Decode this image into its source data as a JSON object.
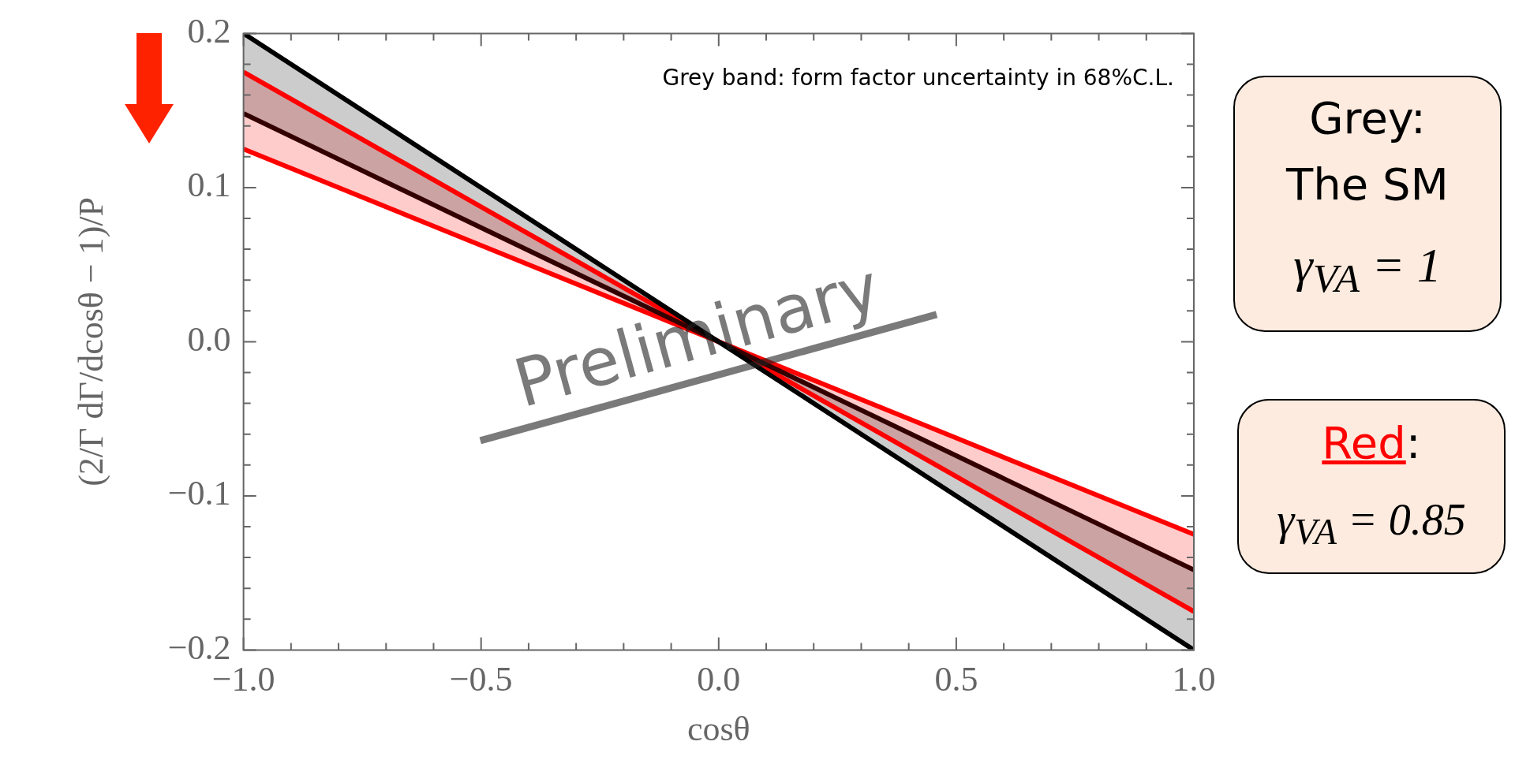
{
  "chart_data": {
    "type": "line",
    "xlabel": "cosθ",
    "ylabel": "(2/Γ dΓ/dcosθ − 1)/P",
    "xlim": [
      -1,
      1
    ],
    "ylim": [
      -0.2,
      0.2
    ],
    "xticks": [
      {
        "value": -1,
        "label": "−1.0"
      },
      {
        "value": -0.9,
        "label": null
      },
      {
        "value": -0.8,
        "label": null
      },
      {
        "value": -0.7,
        "label": null
      },
      {
        "value": -0.6,
        "label": null
      },
      {
        "value": -0.5,
        "label": "−0.5"
      },
      {
        "value": -0.4,
        "label": null
      },
      {
        "value": -0.3,
        "label": null
      },
      {
        "value": -0.2,
        "label": null
      },
      {
        "value": -0.1,
        "label": null
      },
      {
        "value": 0,
        "label": "0.0"
      },
      {
        "value": 0.1,
        "label": null
      },
      {
        "value": 0.2,
        "label": null
      },
      {
        "value": 0.3,
        "label": null
      },
      {
        "value": 0.4,
        "label": null
      },
      0.5,
      {
        "value": 0.6,
        "label": null
      },
      {
        "value": 0.7,
        "label": null
      },
      {
        "value": 0.8,
        "label": null
      },
      {
        "value": 0.9,
        "label": null
      },
      {
        "value": 1,
        "label": "1.0"
      }
    ],
    "yticks": [
      {
        "value": -0.2,
        "label": "−0.2"
      },
      {
        "value": -0.18,
        "label": null
      },
      {
        "value": -0.16,
        "label": null
      },
      {
        "value": -0.14,
        "label": null
      },
      {
        "value": -0.12,
        "label": null
      },
      {
        "value": -0.1,
        "label": "−0.1"
      },
      {
        "value": -0.08,
        "label": null
      },
      {
        "value": -0.06,
        "label": null
      },
      {
        "value": -0.04,
        "label": null
      },
      {
        "value": -0.02,
        "label": null
      },
      {
        "value": 0,
        "label": "0.0"
      },
      {
        "value": 0.02,
        "label": null
      },
      {
        "value": 0.04,
        "label": null
      },
      {
        "value": 0.06,
        "label": null
      },
      {
        "value": 0.08,
        "label": null
      },
      0.1,
      {
        "value": 0.12,
        "label": null
      },
      {
        "value": 0.14,
        "label": null
      },
      {
        "value": 0.16,
        "label": null
      },
      {
        "value": 0.18,
        "label": null
      },
      0.2
    ],
    "series": [
      {
        "color": "#000000",
        "x": [
          -1,
          -0.5,
          0,
          0.5,
          1
        ],
        "values": [
          0.2,
          0.1,
          0,
          -0.1,
          -0.2
        ],
        "lower": [
          0.148,
          0.074,
          0,
          -0.074,
          -0.148
        ],
        "upper": [
          0.2,
          0.1,
          0,
          -0.1,
          -0.2
        ]
      },
      {
        "color": "#330000",
        "x": [
          -1,
          -0.5,
          0,
          0.5,
          1
        ],
        "values": [
          0.148,
          0.074,
          0,
          -0.074,
          -0.148
        ]
      },
      {
        "color": "#ff0000",
        "x": [
          -1,
          -0.5,
          0,
          0.5,
          1
        ],
        "values": [
          0.175,
          0.0875,
          0,
          -0.0875,
          -0.175
        ],
        "lower": [
          0.125,
          0.0625,
          0,
          -0.0625,
          -0.125
        ],
        "upper": [
          0.175,
          0.0875,
          0,
          -0.0875,
          -0.175
        ]
      },
      {
        "color": "#ff0000",
        "x": [
          -1,
          -0.5,
          0,
          0.5,
          1
        ],
        "values": [
          0.125,
          0.0625,
          0,
          -0.0625,
          -0.125
        ]
      }
    ],
    "legend": false,
    "annotations": [
      "Grey band: form factor uncertainty in 68%C.L.",
      "Preliminary",
      "Grey:",
      "The SM",
      "γ$_{VA}$ = 1",
      "Red:",
      "γ$_{VA}$ = 0.85"
    ]
  }
}
